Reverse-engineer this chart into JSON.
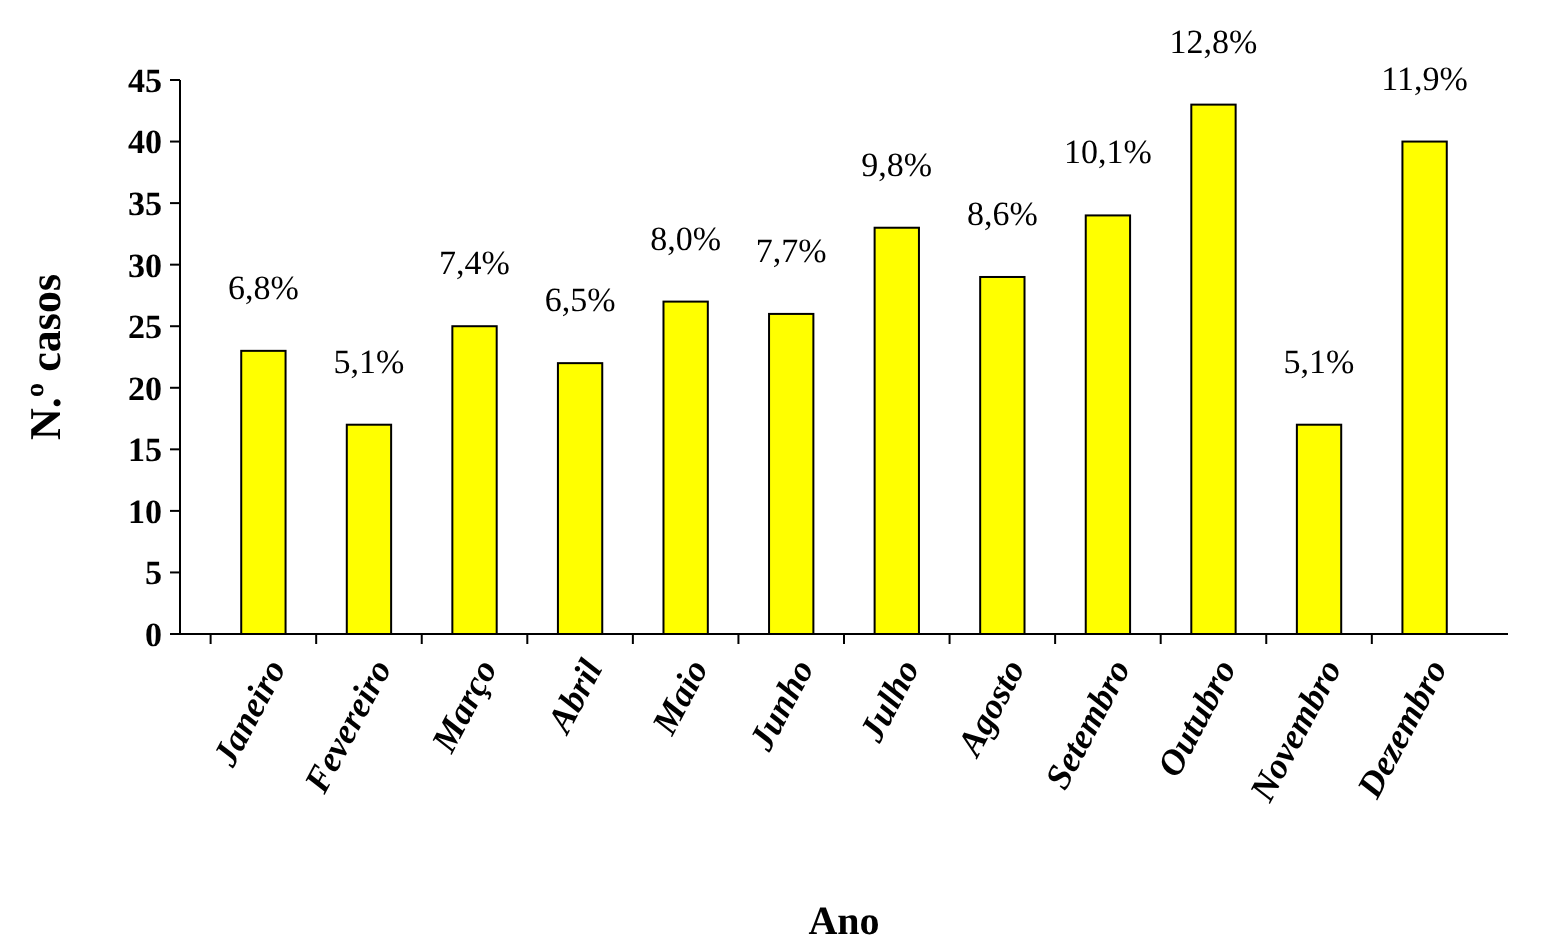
{
  "chart_data": {
    "type": "bar",
    "xlabel": "Ano",
    "ylabel": "N.º casos",
    "categories": [
      "Janeiro",
      "Fevereiro",
      "Março",
      "Abril",
      "Maio",
      "Junho",
      "Julho",
      "Agosto",
      "Setembro",
      "Outubro",
      "Novembro",
      "Dezembro"
    ],
    "values": [
      23,
      17,
      25,
      22,
      27,
      26,
      33,
      29,
      34,
      43,
      17,
      40
    ],
    "annotations": [
      {
        "text": "6,8%",
        "x": "Janeiro",
        "y": 23
      },
      {
        "text": "5,1%",
        "x": "Fevereiro",
        "y": 17
      },
      {
        "text": "7,4%",
        "x": "Março",
        "y": 25
      },
      {
        "text": "6,5%",
        "x": "Abril",
        "y": 22
      },
      {
        "text": "8,0%",
        "x": "Maio",
        "y": 27
      },
      {
        "text": "7,7%",
        "x": "Junho",
        "y": 26
      },
      {
        "text": "9,8%",
        "x": "Julho",
        "y": 33
      },
      {
        "text": "8,6%",
        "x": "Agosto",
        "y": 29
      },
      {
        "text": "10,1%",
        "x": "Setembro",
        "y": 34
      },
      {
        "text": "12,8%",
        "x": "Outubro",
        "y": 43
      },
      {
        "text": "5,1%",
        "x": "Novembro",
        "y": 17
      },
      {
        "text": "11,9%",
        "x": "Dezembro",
        "y": 40
      }
    ],
    "color": "#ffff00",
    "ylim": [
      0,
      45
    ],
    "yticks": [
      0,
      5,
      10,
      15,
      20,
      25,
      30,
      35,
      40,
      45
    ],
    "grid": false
  }
}
